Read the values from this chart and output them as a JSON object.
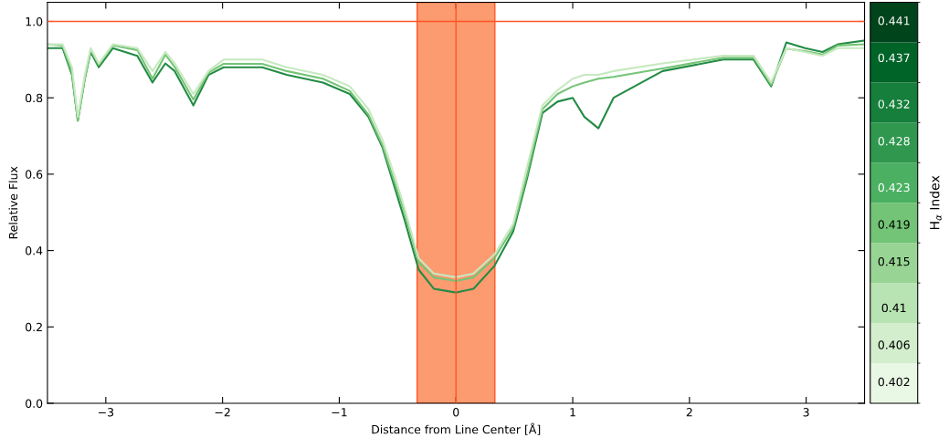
{
  "chart_data": {
    "type": "line",
    "xlabel": "Distance from Line Center [Å]",
    "ylabel": "Relative Flux",
    "clabel": "H$_{α}$ Index",
    "x": [
      -3.5,
      -3.37,
      -3.29,
      -3.24,
      -3.18,
      -3.13,
      -3.06,
      -2.94,
      -2.73,
      -2.6,
      -2.49,
      -2.41,
      -2.25,
      -2.12,
      -1.99,
      -1.66,
      -1.45,
      -1.14,
      -0.91,
      -0.75,
      -0.63,
      -0.52,
      -0.44,
      -0.32,
      -0.19,
      0,
      0.15,
      0.33,
      0.49,
      0.61,
      0.74,
      0.87,
      1,
      1.1,
      1.22,
      1.35,
      1.77,
      2.29,
      2.55,
      2.7,
      2.83,
      2.99,
      3.14,
      3.27,
      3.5
    ],
    "series": [
      {
        "color": "#238b45",
        "values": [
          0.93,
          0.93,
          0.86,
          0.74,
          0.85,
          0.92,
          0.88,
          0.93,
          0.91,
          0.84,
          0.89,
          0.87,
          0.78,
          0.86,
          0.88,
          0.88,
          0.86,
          0.84,
          0.81,
          0.75,
          0.67,
          0.56,
          0.48,
          0.35,
          0.3,
          0.29,
          0.3,
          0.36,
          0.45,
          0.59,
          0.76,
          0.79,
          0.8,
          0.75,
          0.72,
          0.8,
          0.87,
          0.9,
          0.9,
          0.83,
          0.945,
          0.93,
          0.92,
          0.94,
          0.95
        ]
      },
      {
        "color": "#74c476",
        "values": [
          0.94,
          0.937,
          0.866,
          0.74,
          0.85,
          0.925,
          0.886,
          0.937,
          0.925,
          0.85,
          0.913,
          0.881,
          0.795,
          0.866,
          0.889,
          0.889,
          0.87,
          0.85,
          0.818,
          0.756,
          0.676,
          0.573,
          0.5,
          0.37,
          0.33,
          0.32,
          0.33,
          0.38,
          0.46,
          0.6,
          0.77,
          0.81,
          0.83,
          0.84,
          0.85,
          0.855,
          0.877,
          0.905,
          0.905,
          0.834,
          0.929,
          0.922,
          0.913,
          0.937,
          0.94
        ]
      },
      {
        "color": "#c7e9c0",
        "values": [
          0.94,
          0.94,
          0.88,
          0.75,
          0.86,
          0.93,
          0.89,
          0.94,
          0.93,
          0.87,
          0.92,
          0.89,
          0.81,
          0.87,
          0.9,
          0.9,
          0.88,
          0.86,
          0.83,
          0.77,
          0.69,
          0.59,
          0.51,
          0.38,
          0.34,
          0.33,
          0.34,
          0.39,
          0.47,
          0.62,
          0.78,
          0.82,
          0.85,
          0.86,
          0.86,
          0.87,
          0.89,
          0.91,
          0.91,
          0.84,
          0.93,
          0.92,
          0.91,
          0.93,
          0.93
        ]
      }
    ],
    "xlim": [
      -3.5,
      3.5
    ],
    "ylim": [
      0,
      1.05
    ],
    "xticks": [
      {
        "value": -3,
        "label": "−3"
      },
      {
        "value": -2,
        "label": "−2"
      },
      {
        "value": -1,
        "label": "−1"
      },
      0,
      1,
      2,
      3
    ],
    "yticks": [
      {
        "value": 0,
        "label": "0.0"
      },
      0.2,
      0.4,
      0.6,
      0.8,
      {
        "value": 1,
        "label": "1.0"
      }
    ],
    "ref_lines": [
      {
        "axis": "y",
        "value": 1.0,
        "color": "#ff5722"
      },
      {
        "axis": "x",
        "value": 0,
        "color": "#ff5722"
      }
    ],
    "bands": [
      {
        "axis": "x",
        "from": -0.333,
        "to": 0.333,
        "color": "#fc9a70"
      }
    ],
    "clim": [
      0.3998,
      0.4431
    ],
    "cticks": [
      0.402,
      0.406,
      0.41,
      0.415,
      0.419,
      0.423,
      0.428,
      0.432,
      0.437,
      0.441
    ],
    "grid": false,
    "legend": false
  }
}
